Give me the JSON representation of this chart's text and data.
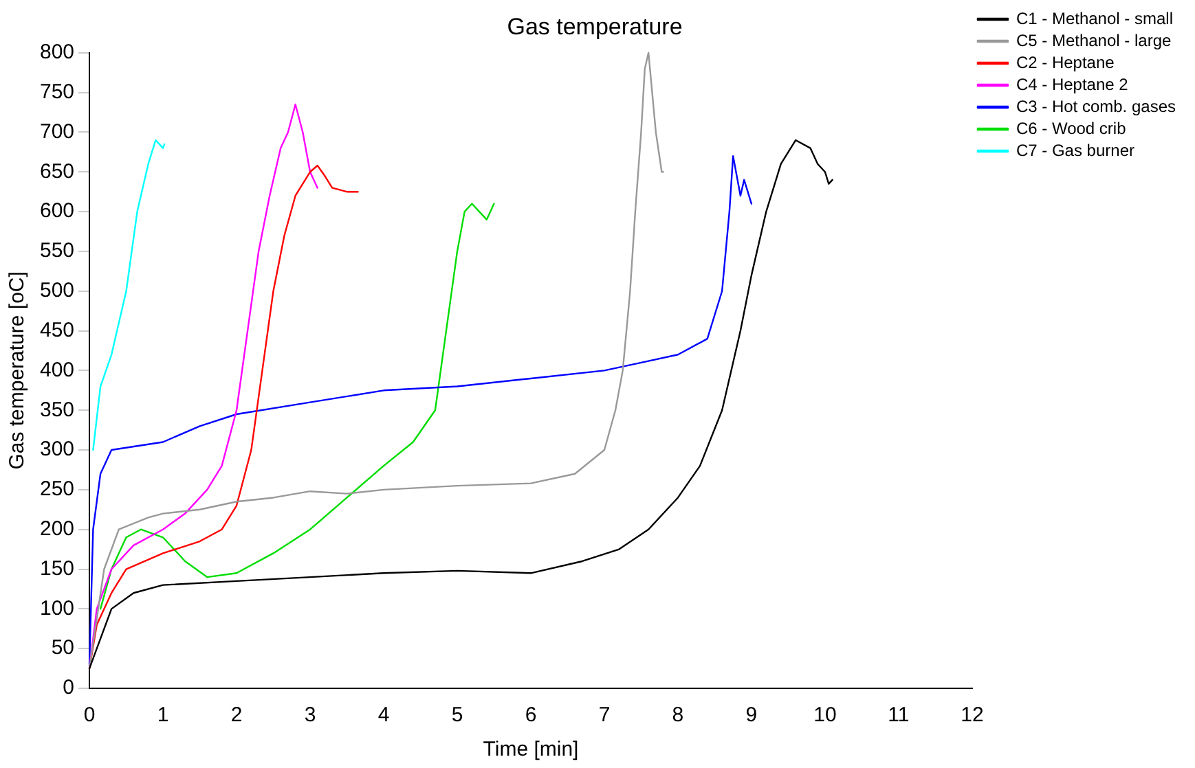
{
  "chart_data": {
    "type": "line",
    "title": "Gas temperature",
    "xlabel": "Time [min]",
    "ylabel": "Gas temperature [oC]",
    "xlim": [
      0,
      12
    ],
    "xticks": [
      0,
      1,
      2,
      3,
      4,
      5,
      6,
      7,
      8,
      9,
      10,
      11,
      12
    ],
    "ylim": [
      0,
      800
    ],
    "yticks": [
      0,
      50,
      100,
      150,
      200,
      250,
      300,
      350,
      400,
      450,
      500,
      550,
      600,
      650,
      700,
      750,
      800
    ],
    "grid": false,
    "legend": "top right",
    "marker": "none",
    "line_style": "solid",
    "series": [
      {
        "name": "C1 - Methanol - small",
        "color": "#000000",
        "x": [
          0,
          0.3,
          0.6,
          1,
          2,
          3,
          4,
          5,
          6,
          6.7,
          7.2,
          7.6,
          8,
          8.3,
          8.6,
          8.85,
          9,
          9.2,
          9.4,
          9.6,
          9.8,
          9.9,
          10,
          10.05,
          10.1
        ],
        "values": [
          25,
          100,
          120,
          130,
          135,
          140,
          145,
          148,
          145,
          160,
          175,
          200,
          240,
          280,
          350,
          450,
          520,
          600,
          660,
          690,
          680,
          660,
          650,
          635,
          640
        ]
      },
      {
        "name": "C5 - Methanol - large",
        "color": "#999999",
        "x": [
          0,
          0.2,
          0.4,
          0.8,
          1,
          1.5,
          2,
          2.5,
          3,
          3.5,
          4,
          5,
          6,
          6.6,
          7,
          7.15,
          7.25,
          7.35,
          7.42,
          7.5,
          7.55,
          7.6,
          7.65,
          7.7,
          7.78,
          7.8
        ],
        "values": [
          25,
          150,
          200,
          215,
          220,
          225,
          235,
          240,
          248,
          245,
          250,
          255,
          258,
          270,
          300,
          350,
          400,
          500,
          600,
          700,
          780,
          800,
          750,
          700,
          650,
          650
        ]
      },
      {
        "name": "C2 - Heptane",
        "color": "#ff0000",
        "x": [
          0,
          0.1,
          0.3,
          0.5,
          1,
          1.5,
          1.8,
          2,
          2.2,
          2.35,
          2.5,
          2.65,
          2.8,
          3,
          3.1,
          3.2,
          3.3,
          3.5,
          3.65
        ],
        "values": [
          25,
          80,
          120,
          150,
          170,
          185,
          200,
          230,
          300,
          400,
          500,
          570,
          620,
          650,
          658,
          645,
          630,
          625,
          625
        ]
      },
      {
        "name": "C4 - Heptane 2",
        "color": "#ff00ff",
        "x": [
          0,
          0.1,
          0.3,
          0.6,
          1,
          1.3,
          1.6,
          1.8,
          2,
          2.15,
          2.3,
          2.45,
          2.6,
          2.7,
          2.8,
          2.9,
          3,
          3.1
        ],
        "values": [
          25,
          100,
          150,
          180,
          200,
          220,
          250,
          280,
          350,
          450,
          550,
          620,
          680,
          700,
          735,
          700,
          650,
          630
        ]
      },
      {
        "name": "C3 - Hot comb. gases",
        "color": "#0000ff",
        "x": [
          0,
          0.05,
          0.15,
          0.3,
          1,
          1.5,
          2,
          3,
          4,
          5,
          6,
          7,
          7.5,
          8,
          8.4,
          8.6,
          8.7,
          8.75,
          8.85,
          8.9,
          9
        ],
        "values": [
          30,
          200,
          270,
          300,
          310,
          330,
          345,
          360,
          375,
          380,
          390,
          400,
          410,
          420,
          440,
          500,
          600,
          670,
          620,
          640,
          610
        ]
      },
      {
        "name": "C6 - Wood crib",
        "color": "#00dd00",
        "x": [
          0.15,
          0.3,
          0.5,
          0.7,
          1,
          1.3,
          1.6,
          2,
          2.5,
          3,
          3.5,
          4,
          4.4,
          4.7,
          4.85,
          5,
          5.1,
          5.2,
          5.3,
          5.4,
          5.5
        ],
        "values": [
          100,
          150,
          190,
          200,
          190,
          160,
          140,
          145,
          170,
          200,
          240,
          280,
          310,
          350,
          450,
          550,
          600,
          610,
          600,
          590,
          610
        ]
      },
      {
        "name": "C7 - Gas burner",
        "color": "#00ffff",
        "x": [
          0.05,
          0.15,
          0.3,
          0.5,
          0.65,
          0.8,
          0.9,
          1,
          1.02
        ],
        "values": [
          300,
          380,
          420,
          500,
          600,
          660,
          690,
          680,
          685
        ]
      }
    ]
  }
}
